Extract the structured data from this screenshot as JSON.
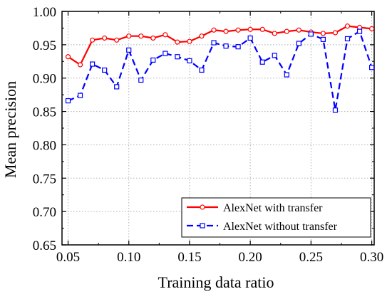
{
  "chart_data": {
    "type": "line",
    "title": "",
    "xlabel": "Training data ratio",
    "ylabel": "Mean precision",
    "xlim": [
      0.045,
      0.302
    ],
    "ylim": [
      0.65,
      1.0
    ],
    "xticks": [
      "0.05",
      "0.10",
      "0.15",
      "0.20",
      "0.25",
      "0.30"
    ],
    "xtick_values": [
      0.05,
      0.1,
      0.15,
      0.2,
      0.25,
      0.3
    ],
    "yticks": [
      "0.65",
      "0.70",
      "0.75",
      "0.80",
      "0.85",
      "0.90",
      "0.95",
      "1.00"
    ],
    "ytick_values": [
      0.65,
      0.7,
      0.75,
      0.8,
      0.85,
      0.9,
      0.95,
      1.0
    ],
    "grid": true,
    "legend_position": "bottom-right",
    "series": [
      {
        "name": "AlexNet with transfer",
        "color": "#ff0000",
        "line_style": "solid",
        "marker": "circle",
        "x": [
          0.05,
          0.06,
          0.07,
          0.08,
          0.09,
          0.1,
          0.11,
          0.12,
          0.13,
          0.14,
          0.15,
          0.16,
          0.17,
          0.18,
          0.19,
          0.2,
          0.21,
          0.22,
          0.23,
          0.24,
          0.25,
          0.26,
          0.27,
          0.28,
          0.29,
          0.3
        ],
        "y": [
          0.932,
          0.92,
          0.957,
          0.96,
          0.957,
          0.963,
          0.963,
          0.96,
          0.965,
          0.954,
          0.955,
          0.963,
          0.972,
          0.97,
          0.972,
          0.973,
          0.973,
          0.967,
          0.97,
          0.972,
          0.969,
          0.967,
          0.968,
          0.978,
          0.976,
          0.974
        ]
      },
      {
        "name": "AlexNet without transfer",
        "color": "#0000ff",
        "line_style": "dashed",
        "marker": "square",
        "x": [
          0.05,
          0.06,
          0.07,
          0.08,
          0.09,
          0.1,
          0.11,
          0.12,
          0.13,
          0.14,
          0.15,
          0.16,
          0.17,
          0.18,
          0.19,
          0.2,
          0.21,
          0.22,
          0.23,
          0.24,
          0.25,
          0.26,
          0.27,
          0.28,
          0.29,
          0.3
        ],
        "y": [
          0.866,
          0.874,
          0.921,
          0.912,
          0.887,
          0.942,
          0.897,
          0.927,
          0.937,
          0.932,
          0.926,
          0.912,
          0.953,
          0.948,
          0.947,
          0.96,
          0.924,
          0.934,
          0.905,
          0.952,
          0.966,
          0.958,
          0.852,
          0.959,
          0.97,
          0.916
        ]
      }
    ]
  }
}
